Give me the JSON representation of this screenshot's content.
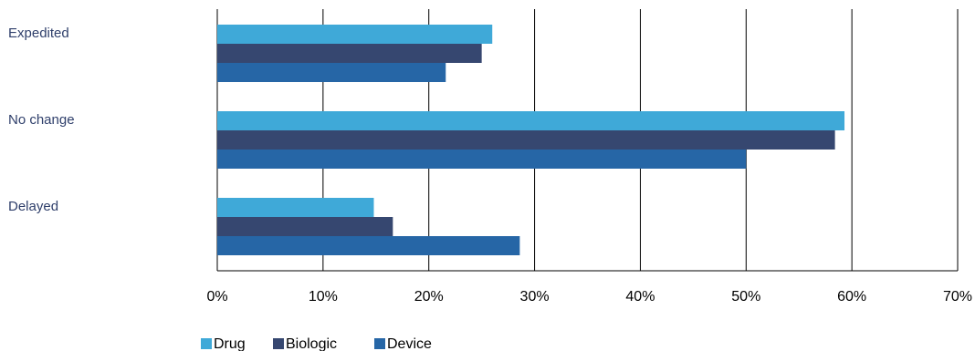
{
  "chart_data": {
    "type": "bar",
    "orientation": "horizontal",
    "categories": [
      "Expedited",
      "No change",
      "Delayed"
    ],
    "series": [
      {
        "name": "Drug",
        "color": "#3fa9d8",
        "values": [
          26,
          59.3,
          14.8
        ]
      },
      {
        "name": "Biologic",
        "color": "#364770",
        "values": [
          25,
          58.4,
          16.6
        ]
      },
      {
        "name": "Device",
        "color": "#2666a6",
        "values": [
          21.6,
          50,
          28.6
        ]
      }
    ],
    "xlim": [
      0,
      70
    ],
    "xticks": [
      0,
      10,
      20,
      30,
      40,
      50,
      60,
      70
    ],
    "xtick_labels": [
      "0%",
      "10%",
      "20%",
      "30%",
      "40%",
      "50%",
      "60%",
      "70%"
    ],
    "grid": "vertical",
    "legend_position": "bottom"
  }
}
